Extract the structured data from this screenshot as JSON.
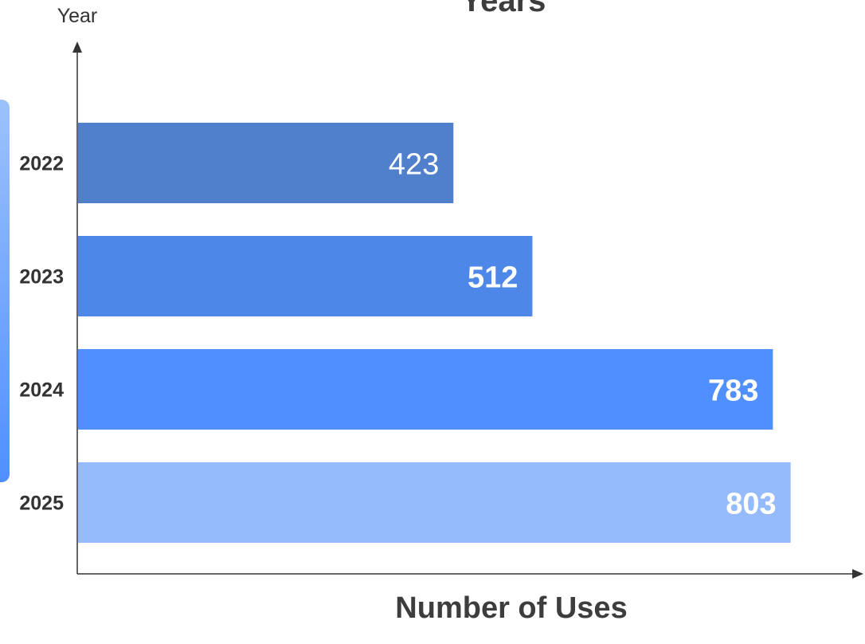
{
  "chart_data": {
    "type": "bar",
    "orientation": "horizontal",
    "title": "Years",
    "ylabel": "Year",
    "xlabel": "Number of Uses",
    "categories": [
      "2022",
      "2023",
      "2024",
      "2025"
    ],
    "values": [
      423,
      512,
      783,
      803
    ],
    "data_labels": [
      "423",
      "512",
      "783",
      "803"
    ],
    "bar_colors": [
      "#5080cc",
      "#4d88e8",
      "#4f8fff",
      "#96bbfc"
    ],
    "xlim": [
      0,
      850
    ],
    "grid": false,
    "legend": false,
    "accent_color": "#4f8fff"
  }
}
